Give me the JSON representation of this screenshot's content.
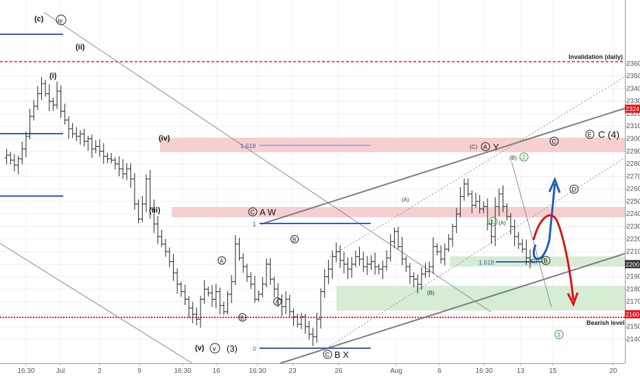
{
  "chart_data": {
    "type": "candlestick",
    "title": "",
    "xlabel": "",
    "ylabel": "",
    "ylim": [
      2135,
      2365
    ],
    "yticks": [
      2140,
      2150,
      2160,
      2170,
      2180,
      2190,
      2200,
      2210,
      2220,
      2230,
      2240,
      2250,
      2260,
      2270,
      2280,
      2290,
      2300,
      2310,
      2320,
      2330,
      2340,
      2350,
      2360
    ],
    "xticks": [
      "16:30",
      "Jul",
      "2",
      "9",
      "16:30",
      "16",
      "16:30",
      "23",
      "26",
      "Aug",
      "6",
      "16:30",
      "13",
      "15",
      "20"
    ],
    "grid": true,
    "colors": {
      "candle": "#222222",
      "zone_red": "#f4c7c9",
      "zone_green": "#d2ead0",
      "level_red": "#e0141b",
      "fib_line": "#2f5fb0",
      "trend_line": "#777777",
      "arrow_blue": "#1f5bb5",
      "arrow_red": "#dd1111",
      "label_green": "#2a9a3a",
      "price_tag_bg": "#333333"
    },
    "path_points": [
      [
        0,
        2285
      ],
      [
        1,
        2287
      ],
      [
        2,
        2283
      ],
      [
        3,
        2279
      ],
      [
        4,
        2284
      ],
      [
        5,
        2292
      ],
      [
        6,
        2302
      ],
      [
        7,
        2318
      ],
      [
        8,
        2326
      ],
      [
        9,
        2336
      ],
      [
        10,
        2344
      ],
      [
        11,
        2336
      ],
      [
        12,
        2330
      ],
      [
        13,
        2327
      ],
      [
        14,
        2338
      ],
      [
        15,
        2322
      ],
      [
        16,
        2315
      ],
      [
        17,
        2308
      ],
      [
        18,
        2304
      ],
      [
        19,
        2302
      ],
      [
        20,
        2304
      ],
      [
        21,
        2298
      ],
      [
        22,
        2300
      ],
      [
        23,
        2292
      ],
      [
        24,
        2294
      ],
      [
        25,
        2290
      ],
      [
        26,
        2286
      ],
      [
        27,
        2284
      ],
      [
        28,
        2283
      ],
      [
        29,
        2280
      ],
      [
        30,
        2276
      ],
      [
        31,
        2272
      ],
      [
        32,
        2276
      ],
      [
        33,
        2268
      ],
      [
        34,
        2248
      ],
      [
        35,
        2236
      ],
      [
        36,
        2248
      ],
      [
        37,
        2268
      ],
      [
        38,
        2244
      ],
      [
        39,
        2232
      ],
      [
        40,
        2222
      ],
      [
        41,
        2216
      ],
      [
        42,
        2210
      ],
      [
        43,
        2202
      ],
      [
        44,
        2193
      ],
      [
        45,
        2184
      ],
      [
        46,
        2178
      ],
      [
        47,
        2172
      ],
      [
        48,
        2165
      ],
      [
        49,
        2160
      ],
      [
        50,
        2156
      ],
      [
        51,
        2172
      ],
      [
        52,
        2180
      ],
      [
        53,
        2177
      ],
      [
        54,
        2172
      ],
      [
        55,
        2178
      ],
      [
        56,
        2167
      ],
      [
        57,
        2162
      ],
      [
        58,
        2176
      ],
      [
        59,
        2186
      ],
      [
        60,
        2216
      ],
      [
        61,
        2205
      ],
      [
        62,
        2198
      ],
      [
        63,
        2190
      ],
      [
        64,
        2184
      ],
      [
        65,
        2172
      ],
      [
        66,
        2176
      ],
      [
        67,
        2184
      ],
      [
        68,
        2200
      ],
      [
        69,
        2188
      ],
      [
        70,
        2180
      ],
      [
        71,
        2172
      ],
      [
        72,
        2166
      ],
      [
        73,
        2172
      ],
      [
        74,
        2162
      ],
      [
        75,
        2158
      ],
      [
        76,
        2152
      ],
      [
        77,
        2158
      ],
      [
        78,
        2150
      ],
      [
        79,
        2144
      ],
      [
        80,
        2142
      ],
      [
        81,
        2156
      ],
      [
        82,
        2178
      ],
      [
        83,
        2190
      ],
      [
        84,
        2196
      ],
      [
        85,
        2206
      ],
      [
        86,
        2210
      ],
      [
        87,
        2203
      ],
      [
        88,
        2200
      ],
      [
        89,
        2196
      ],
      [
        90,
        2200
      ],
      [
        91,
        2206
      ],
      [
        92,
        2204
      ],
      [
        93,
        2198
      ],
      [
        94,
        2200
      ],
      [
        95,
        2202
      ],
      [
        96,
        2198
      ],
      [
        97,
        2196
      ],
      [
        98,
        2198
      ],
      [
        99,
        2205
      ],
      [
        100,
        2218
      ],
      [
        101,
        2226
      ],
      [
        102,
        2214
      ],
      [
        103,
        2204
      ],
      [
        104,
        2198
      ],
      [
        105,
        2190
      ],
      [
        106,
        2188
      ],
      [
        107,
        2184
      ],
      [
        108,
        2192
      ],
      [
        109,
        2194
      ],
      [
        110,
        2198
      ],
      [
        111,
        2214
      ],
      [
        112,
        2210
      ],
      [
        113,
        2204
      ],
      [
        114,
        2212
      ],
      [
        115,
        2220
      ],
      [
        116,
        2230
      ],
      [
        117,
        2240
      ],
      [
        118,
        2254
      ],
      [
        119,
        2264
      ],
      [
        120,
        2256
      ],
      [
        121,
        2247
      ],
      [
        122,
        2250
      ],
      [
        123,
        2244
      ],
      [
        124,
        2246
      ],
      [
        125,
        2232
      ],
      [
        126,
        2222
      ],
      [
        127,
        2246
      ],
      [
        128,
        2256
      ],
      [
        129,
        2246
      ],
      [
        130,
        2238
      ],
      [
        131,
        2230
      ],
      [
        132,
        2222
      ],
      [
        133,
        2216
      ],
      [
        134,
        2212
      ],
      [
        135,
        2205
      ],
      [
        136,
        2203
      ]
    ],
    "price_labels": [
      {
        "value": 2324,
        "text": "2324",
        "style": "red"
      },
      {
        "value": 2200,
        "text": "2200",
        "style": "dark"
      },
      {
        "value": 2160,
        "text": "2160",
        "style": "red"
      }
    ],
    "annotations": {
      "invalidation": "Invalidation (daily)",
      "bearish": "Bearish level",
      "fib_upper": "1.618",
      "fib_lower": "1.618",
      "fib_one": "1",
      "fib_zero": "0",
      "c_top": "(c)",
      "iv_top": "iv",
      "ii": "(ii)",
      "i": "(i)",
      "iv_mid": "(iv)",
      "iii": "(iii)",
      "v_paren": "(v)",
      "v_circ": "v",
      "three_paren": "(3)",
      "c_aw": "C",
      "aw": "A W",
      "a_circ1": "A",
      "b_circ1": "B",
      "a_circ2": "A",
      "b_circ2": "B",
      "c_bx": "C",
      "bx": "B X",
      "a_paren1": "(A)",
      "b_paren1": "(B)",
      "c_paren": "(C)",
      "a_circ_y": "A",
      "y": "Y",
      "two_green": "2",
      "b_paren2": "(B)",
      "one_green": "1",
      "a_paren2": "(A)",
      "c_paren2": "(C)",
      "b_circ3": "B",
      "three_green": "3",
      "e_circ": "E",
      "c4": "C (4)",
      "c_circ_right": "C",
      "d_circ": "D"
    }
  }
}
